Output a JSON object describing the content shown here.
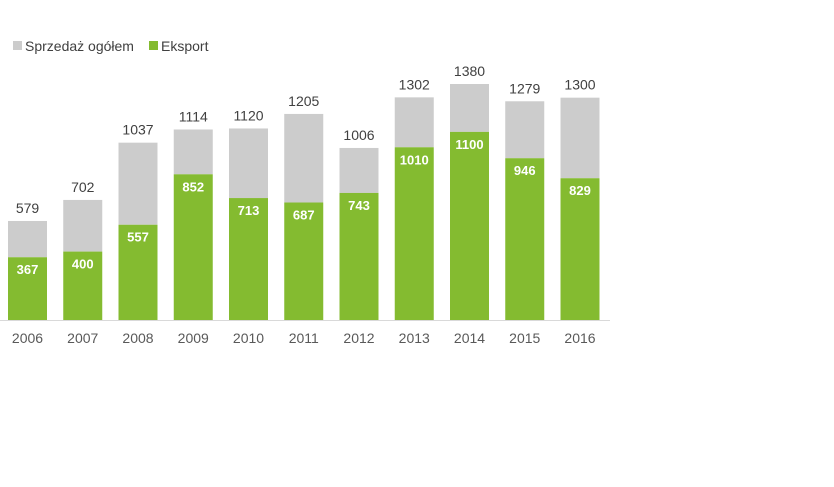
{
  "chart_data": {
    "type": "bar",
    "categories": [
      "2006",
      "2007",
      "2008",
      "2009",
      "2010",
      "2011",
      "2012",
      "2013",
      "2014",
      "2015",
      "2016"
    ],
    "series": [
      {
        "name": "Sprzedaż ogółem",
        "color": "#cccccc",
        "values": [
          579,
          702,
          1037,
          1114,
          1120,
          1205,
          1006,
          1302,
          1380,
          1279,
          1300
        ]
      },
      {
        "name": "Eksport",
        "color": "#84bb30",
        "values": [
          367,
          400,
          557,
          852,
          713,
          687,
          743,
          1010,
          1100,
          946,
          829
        ]
      }
    ],
    "ylim": [
      0,
      1380
    ],
    "legend": "top-left",
    "title": "",
    "xlabel": "",
    "ylabel": ""
  }
}
